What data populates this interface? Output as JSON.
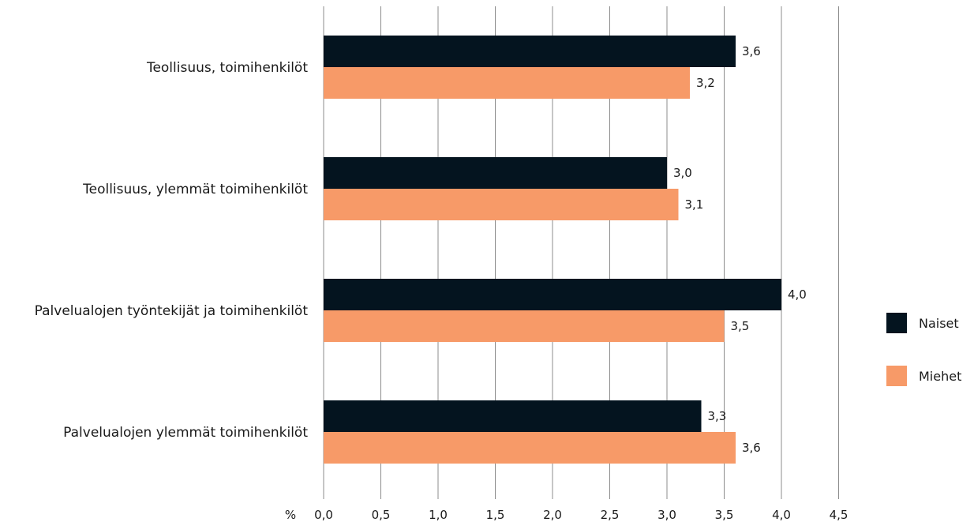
{
  "chart_data": {
    "type": "bar",
    "orientation": "horizontal",
    "categories": [
      "Teollisuus, toimihenkilöt",
      "Teollisuus, ylemmät toimihenkilöt",
      "Palvelualojen työntekijät ja toimihenkilöt",
      "Palvelualojen ylemmät toimihenkilöt"
    ],
    "series": [
      {
        "name": "Naiset",
        "color": "#04141f",
        "values": [
          3.6,
          3.0,
          4.0,
          3.3
        ],
        "labels": [
          "3,6",
          "3,0",
          "4,0",
          "3,3"
        ]
      },
      {
        "name": "Miehet",
        "color": "#f79a68",
        "values": [
          3.2,
          3.1,
          3.5,
          3.6
        ],
        "labels": [
          "3,2",
          "3,1",
          "3,5",
          "3,6"
        ]
      }
    ],
    "xlabel": "%",
    "xlim": [
      0,
      4.5
    ],
    "xticks": [
      0,
      0.5,
      1.0,
      1.5,
      2.0,
      2.5,
      3.0,
      3.5,
      4.0,
      4.5
    ],
    "xtick_labels": [
      "0,0",
      "0,5",
      "1,0",
      "1,5",
      "2,0",
      "2,5",
      "3,0",
      "3,5",
      "4,0",
      "4,5"
    ],
    "grid": "vertical",
    "legend_position": "right",
    "gridline_color": "#8c8c8c"
  }
}
